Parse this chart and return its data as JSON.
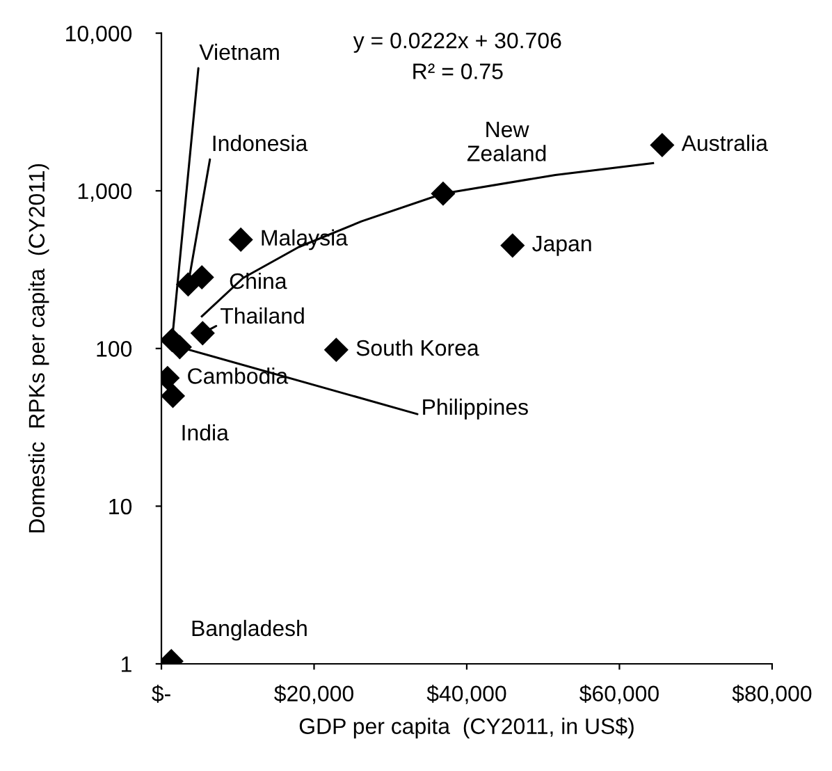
{
  "chart_data": {
    "type": "scatter",
    "xlabel": "GDP per capita  (CY2011, in US$)",
    "ylabel": "Domestic  RPKs per capita  (CY2011)",
    "log": "y",
    "grid": false,
    "legend": false,
    "xlim": [
      0,
      80000
    ],
    "xticks": [
      {
        "value": 0,
        "label": "$-"
      },
      {
        "value": 20000,
        "label": "$20,000"
      },
      {
        "value": 40000,
        "label": "$40,000"
      },
      {
        "value": 60000,
        "label": "$60,000"
      },
      {
        "value": 80000,
        "label": "$80,000"
      }
    ],
    "ylim": [
      1,
      10000
    ],
    "yticks": [
      1,
      10,
      100,
      {
        "value": 1000,
        "label": "1,000"
      },
      {
        "value": 10000,
        "label": "10,000"
      }
    ],
    "series": [
      {
        "color": "#000000",
        "marker": "diamond",
        "x": [
          65600,
          36900,
          46000,
          10400,
          5300,
          3500,
          5400,
          1400,
          2400,
          22900,
          800,
          1500,
          1300
        ],
        "values": [
          1950,
          960,
          450,
          490,
          283,
          255,
          125,
          113,
          102,
          98,
          65,
          50,
          1.04
        ]
      },
      {
        "type": "line",
        "color": "#000000",
        "marker": "none",
        "line_style": "solid",
        "x": [
          5300,
          10700,
          18000,
          26200,
          36900,
          51600,
          64400
        ],
        "values": [
          160,
          280,
          440,
          640,
          960,
          1260,
          1500
        ]
      }
    ],
    "annotations": [
      {
        "text": "Australia",
        "x": 65600,
        "y": 1950
      },
      {
        "text": "New\nZealand",
        "x": 36900,
        "y": 960
      },
      {
        "text": "Japan",
        "x": 46000,
        "y": 450
      },
      {
        "text": "Malaysia",
        "x": 10400,
        "y": 490
      },
      {
        "text": "China",
        "x": 5300,
        "y": 283
      },
      {
        "text": "Indonesia",
        "x": 3500,
        "y": 255
      },
      {
        "text": "Thailand",
        "x": 5400,
        "y": 125
      },
      {
        "text": "Vietnam",
        "x": 1400,
        "y": 113
      },
      {
        "text": "Philippines",
        "x": 2400,
        "y": 102
      },
      {
        "text": "South Korea",
        "x": 22900,
        "y": 98
      },
      {
        "text": "Cambodia",
        "x": 800,
        "y": 65
      },
      {
        "text": "India",
        "x": 1500,
        "y": 50
      },
      {
        "text": "Bangladesh",
        "x": 1300,
        "y": 1.04
      },
      "y = 0.0222x + 30.706",
      "R² = 0.75"
    ]
  }
}
